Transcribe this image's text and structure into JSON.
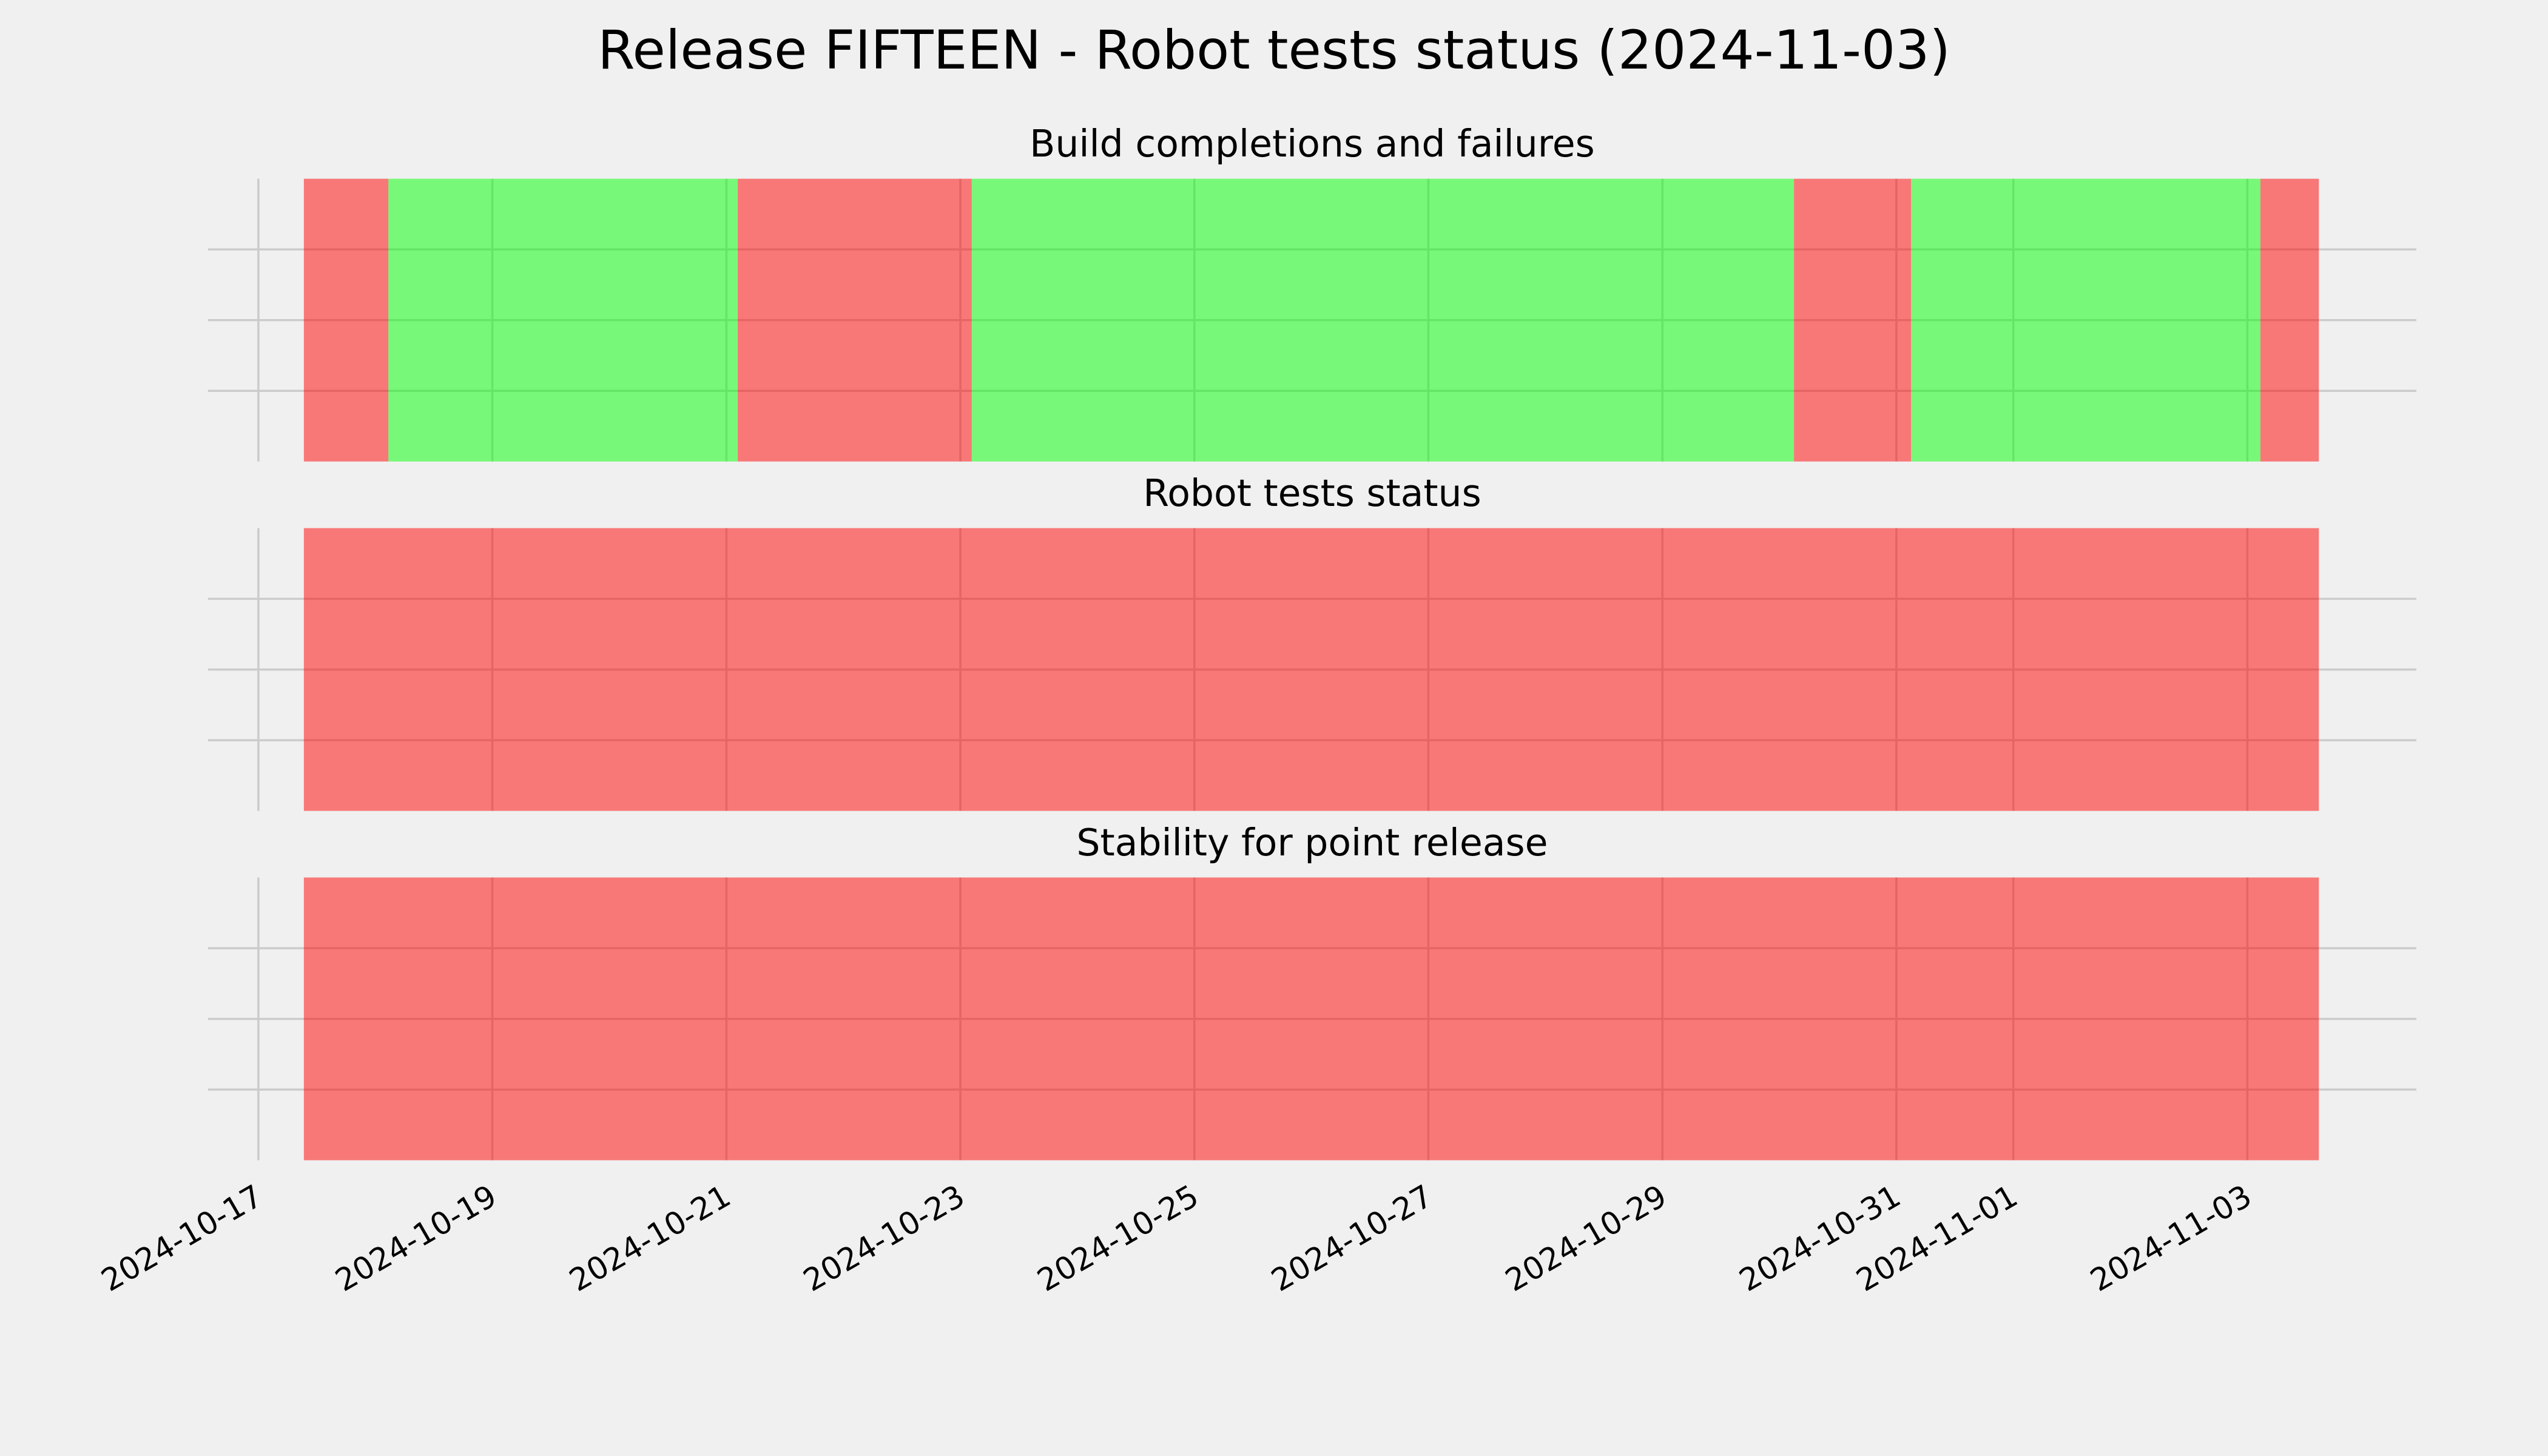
{
  "title": "Release FIFTEEN - Robot tests status (2024-11-03)",
  "chart_data": [
    {
      "type": "timeline",
      "title": "Build completions and failures",
      "spans": [
        {
          "start": "2024-10-17T09:20",
          "end": "2024-10-18T02:40",
          "color": "#ff0000"
        },
        {
          "start": "2024-10-18T02:40",
          "end": "2024-10-21T02:20",
          "color": "#00ff00"
        },
        {
          "start": "2024-10-21T02:20",
          "end": "2024-10-23T02:20",
          "color": "#ff0000"
        },
        {
          "start": "2024-10-23T02:20",
          "end": "2024-10-30T03:00",
          "color": "#00ff00"
        },
        {
          "start": "2024-10-30T03:00",
          "end": "2024-10-31T03:00",
          "color": "#ff0000"
        },
        {
          "start": "2024-10-31T03:00",
          "end": "2024-11-03T02:40",
          "color": "#00ff00"
        },
        {
          "start": "2024-11-03T02:40",
          "end": "2024-11-03T14:40",
          "color": "#ff0000"
        }
      ],
      "alpha": 0.5,
      "ylim": [
        0,
        1
      ],
      "yticks": [
        0.25,
        0.5,
        0.75
      ],
      "grid": true
    },
    {
      "type": "timeline",
      "title": "Robot tests status",
      "spans": [
        {
          "start": "2024-10-17T09:20",
          "end": "2024-11-03T14:40",
          "color": "#ff0000"
        }
      ],
      "alpha": 0.5,
      "ylim": [
        0,
        1
      ],
      "yticks": [
        0.25,
        0.5,
        0.75
      ],
      "grid": true
    },
    {
      "type": "timeline",
      "title": "Stability for point release",
      "spans": [
        {
          "start": "2024-10-17T09:20",
          "end": "2024-11-03T14:40",
          "color": "#ff0000"
        }
      ],
      "alpha": 0.5,
      "ylim": [
        0,
        1
      ],
      "yticks": [
        0.25,
        0.5,
        0.75
      ],
      "grid": true,
      "xlim": [
        "2024-10-16T13:40",
        "2024-11-04T10:40"
      ],
      "xticks": [
        "2024-10-17",
        "2024-10-19",
        "2024-10-21",
        "2024-10-23",
        "2024-10-25",
        "2024-10-27",
        "2024-10-29",
        "2024-10-31",
        "2024-11-01",
        "2024-11-03"
      ]
    }
  ]
}
